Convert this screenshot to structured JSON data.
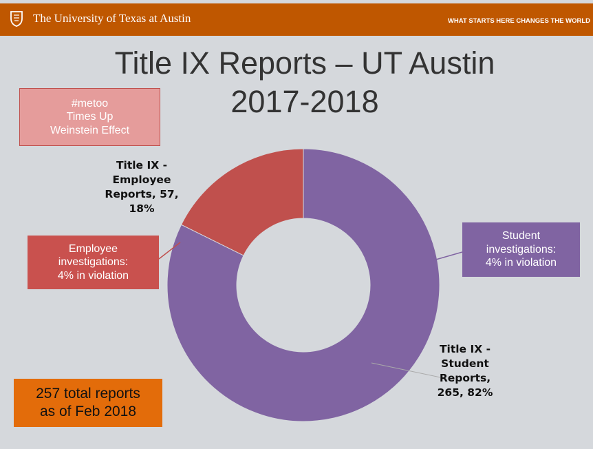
{
  "header": {
    "institution": "The University of Texas at Austin",
    "tagline": "WHAT STARTS HERE CHANGES THE WORLD"
  },
  "chart_data": {
    "type": "donut",
    "title": "Title IX Reports – UT Austin",
    "subtitle": "2017-2018",
    "categories": [
      "Title IX - Employee Reports",
      "Title IX - Student Reports"
    ],
    "values": [
      57,
      265
    ],
    "value_labels": [
      "Title IX - Employee Reports, 57, 18%",
      "Title IX - Student Reports, 265, 82%"
    ],
    "colors": [
      "#c0504d",
      "#8064a2"
    ],
    "annotations": [
      {
        "lines": [
          "#metoo",
          "Times Up",
          "Weinstein Effect"
        ]
      },
      {
        "lines": [
          "Employee",
          "investigations:",
          "4% in violation"
        ]
      },
      {
        "lines": [
          "Student",
          "investigations:",
          "4% in violation"
        ]
      },
      {
        "lines": [
          "257 total reports",
          "as of Feb 2018"
        ]
      }
    ]
  }
}
